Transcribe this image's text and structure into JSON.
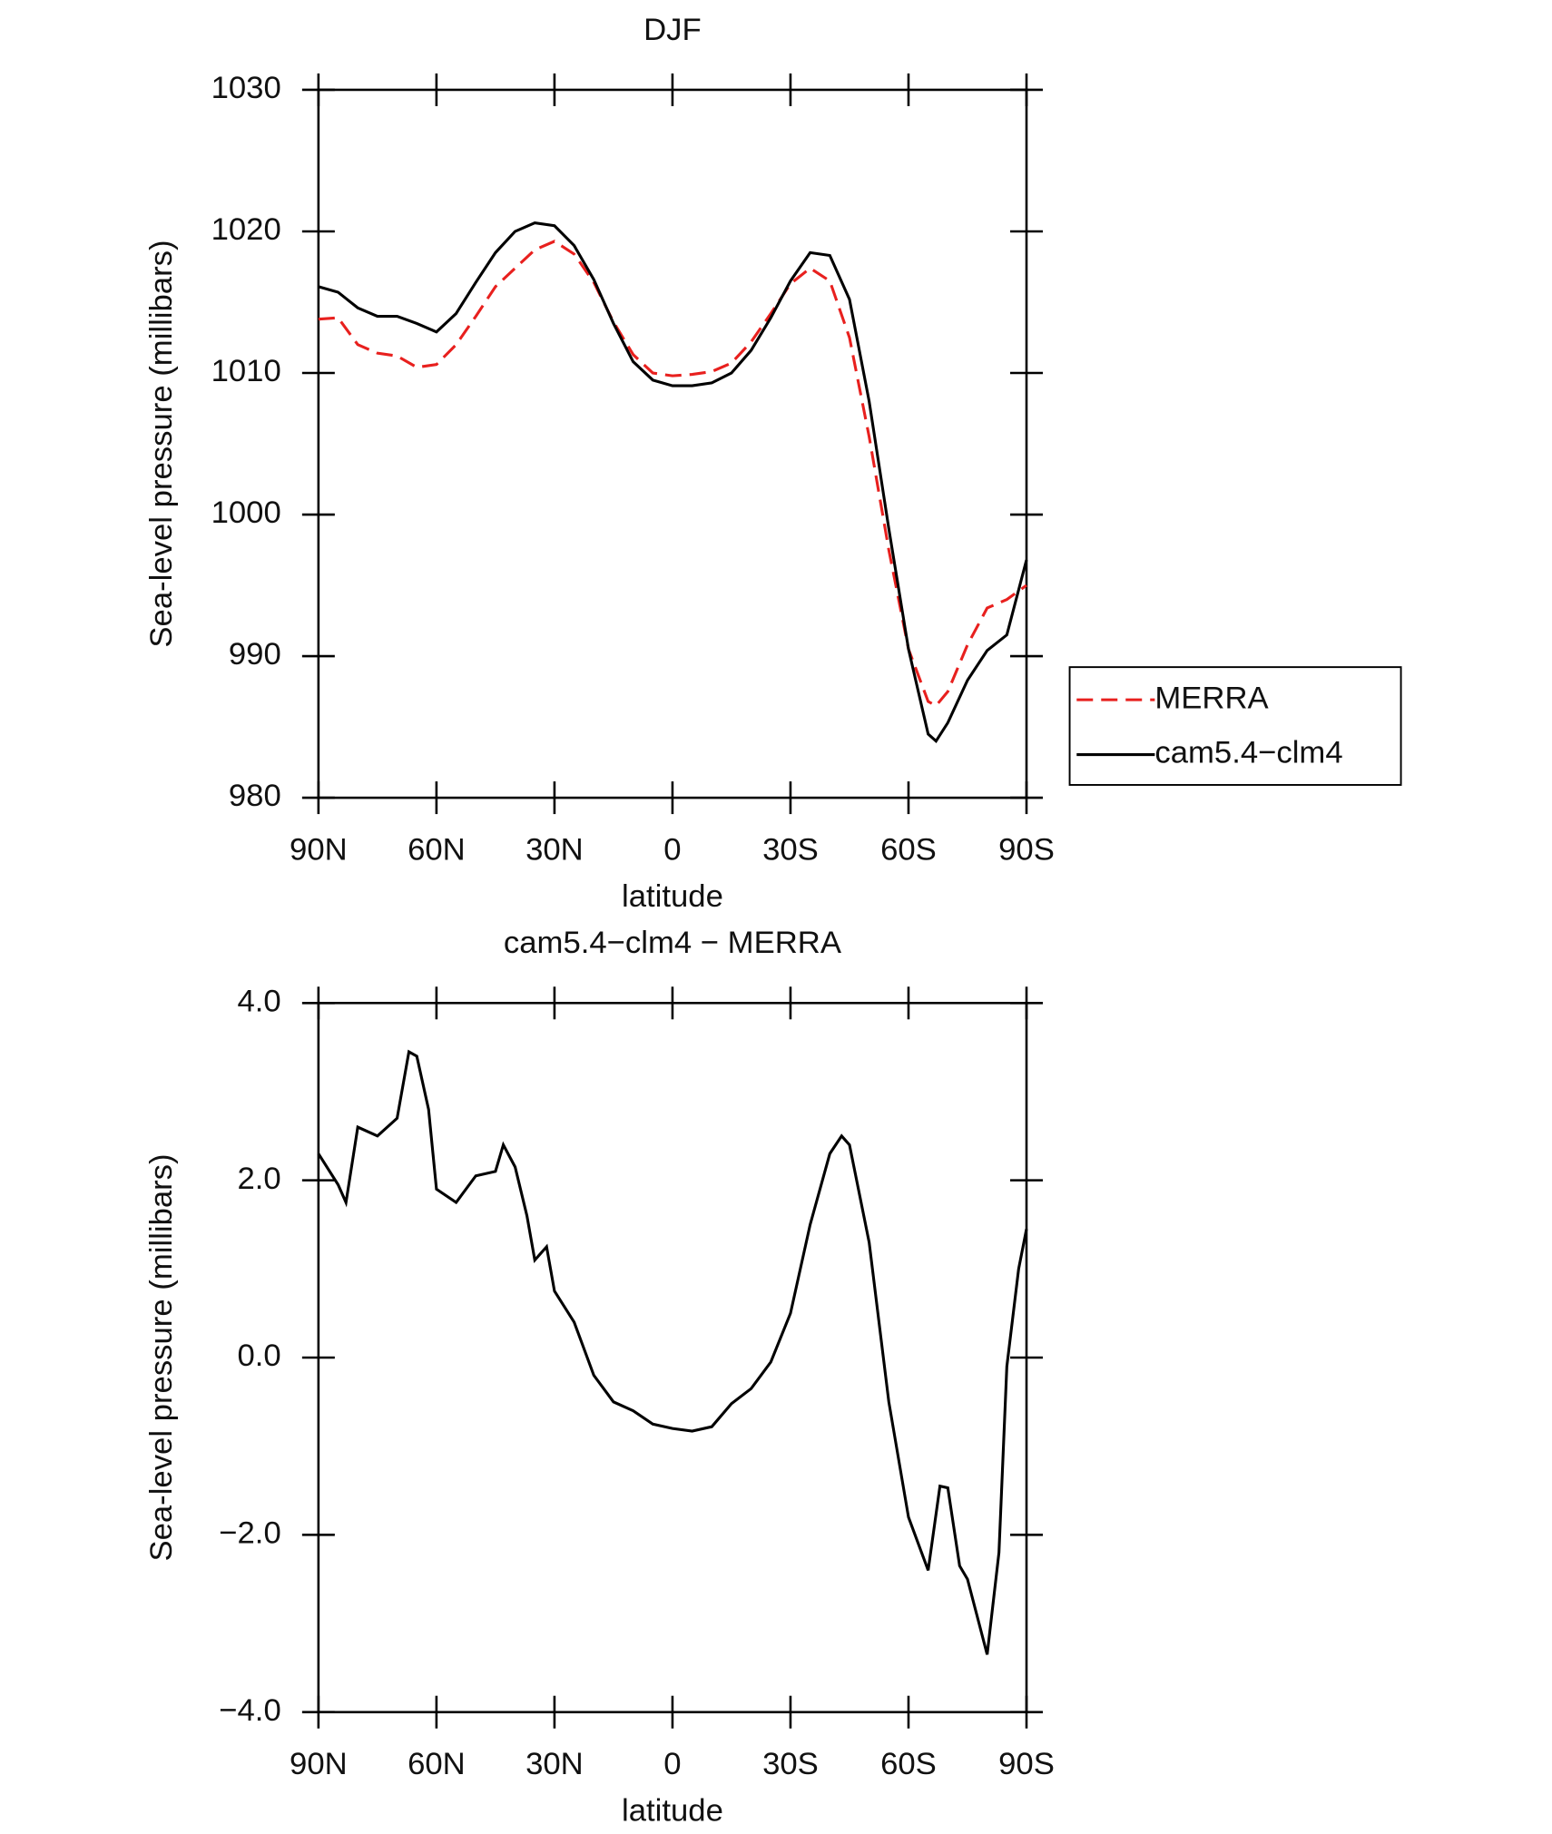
{
  "chart_data": [
    {
      "type": "line",
      "title": "DJF",
      "xlabel": "latitude",
      "ylabel": "Sea-level pressure (millibars)",
      "x": [
        90,
        85,
        80,
        75,
        70,
        65,
        60,
        55,
        50,
        45,
        40,
        35,
        30,
        25,
        20,
        15,
        10,
        5,
        0,
        -5,
        -10,
        -15,
        -20,
        -25,
        -30,
        -35,
        -40,
        -45,
        -50,
        -55,
        -60,
        -65,
        -67,
        -70,
        -75,
        -80,
        -85,
        -90
      ],
      "series": [
        {
          "name": "MERRA",
          "color": "#e8201e",
          "dash": true,
          "values": [
            1013.8,
            1013.9,
            1012.0,
            1011.4,
            1011.2,
            1010.4,
            1010.6,
            1012.0,
            1014.0,
            1016.1,
            1017.4,
            1018.7,
            1019.3,
            1018.4,
            1016.4,
            1013.6,
            1011.3,
            1010.0,
            1009.8,
            1009.9,
            1010.1,
            1010.7,
            1012.2,
            1014.2,
            1016.3,
            1017.4,
            1016.5,
            1012.5,
            1005.5,
            997.5,
            990.5,
            986.8,
            986.5,
            987.5,
            990.8,
            993.4,
            994.0,
            995.0
          ]
        },
        {
          "name": "cam5.4−clm4",
          "color": "#000000",
          "dash": false,
          "values": [
            1016.1,
            1015.7,
            1014.6,
            1014.0,
            1014.0,
            1013.5,
            1012.9,
            1014.2,
            1016.4,
            1018.5,
            1020.0,
            1020.6,
            1020.4,
            1019.0,
            1016.6,
            1013.5,
            1010.8,
            1009.5,
            1009.1,
            1009.1,
            1009.3,
            1010.0,
            1011.6,
            1013.9,
            1016.5,
            1018.5,
            1018.3,
            1015.2,
            1008,
            999,
            990.5,
            984.5,
            984.0,
            985.3,
            988.3,
            990.4,
            991.5,
            996.8
          ]
        }
      ],
      "xlim": [
        90,
        -90
      ],
      "xticks": [
        {
          "value": 90,
          "label": "90N"
        },
        {
          "value": 60,
          "label": "60N"
        },
        {
          "value": 30,
          "label": "30N"
        },
        0,
        {
          "value": -30,
          "label": "30S"
        },
        {
          "value": -60,
          "label": "60S"
        },
        {
          "value": -90,
          "label": "90S"
        }
      ],
      "ylim": [
        980,
        1030
      ],
      "yticks": [
        980,
        990,
        1000,
        1010,
        1020,
        1030
      ],
      "legend": "outside right"
    },
    {
      "type": "line",
      "title": "cam5.4−clm4 − MERRA",
      "xlabel": "latitude",
      "ylabel": "Sea-level pressure (millibars)",
      "x": [
        90,
        85,
        83,
        80,
        75,
        70,
        67,
        65,
        62,
        60,
        55,
        50,
        45,
        43,
        40,
        37,
        35,
        32,
        30,
        25,
        20,
        15,
        10,
        5,
        0,
        -5,
        -10,
        -15,
        -20,
        -25,
        -30,
        -35,
        -40,
        -43,
        -45,
        -50,
        -55,
        -60,
        -65,
        -68,
        -70,
        -73,
        -75,
        -80,
        -83,
        -85,
        -88,
        -90
      ],
      "color": "#000000",
      "values": [
        2.3,
        1.95,
        1.75,
        2.6,
        2.5,
        2.7,
        3.45,
        3.4,
        2.8,
        1.9,
        1.75,
        2.05,
        2.1,
        2.4,
        2.15,
        1.6,
        1.1,
        1.25,
        0.75,
        0.4,
        -0.2,
        -0.5,
        -0.6,
        -0.75,
        -0.8,
        -0.83,
        -0.78,
        -0.52,
        -0.35,
        -0.05,
        0.5,
        1.5,
        2.3,
        2.5,
        2.4,
        1.3,
        -0.5,
        -1.8,
        -2.4,
        -1.45,
        -1.47,
        -2.35,
        -2.5,
        -3.35,
        -2.2,
        -0.1,
        1.0,
        1.45
      ],
      "xlim": [
        90,
        -90
      ],
      "xticks": [
        {
          "value": 90,
          "label": "90N"
        },
        {
          "value": 60,
          "label": "60N"
        },
        {
          "value": 30,
          "label": "30N"
        },
        0,
        {
          "value": -30,
          "label": "30S"
        },
        {
          "value": -60,
          "label": "60S"
        },
        {
          "value": -90,
          "label": "90S"
        }
      ],
      "ylim": [
        -4,
        4
      ],
      "yticks": [
        {
          "value": -4,
          "label": "−4.0"
        },
        {
          "value": -2,
          "label": "−2.0"
        },
        {
          "value": 0,
          "label": "0.0"
        },
        {
          "value": 2,
          "label": "2.0"
        },
        {
          "value": 4,
          "label": "4.0"
        }
      ]
    }
  ]
}
